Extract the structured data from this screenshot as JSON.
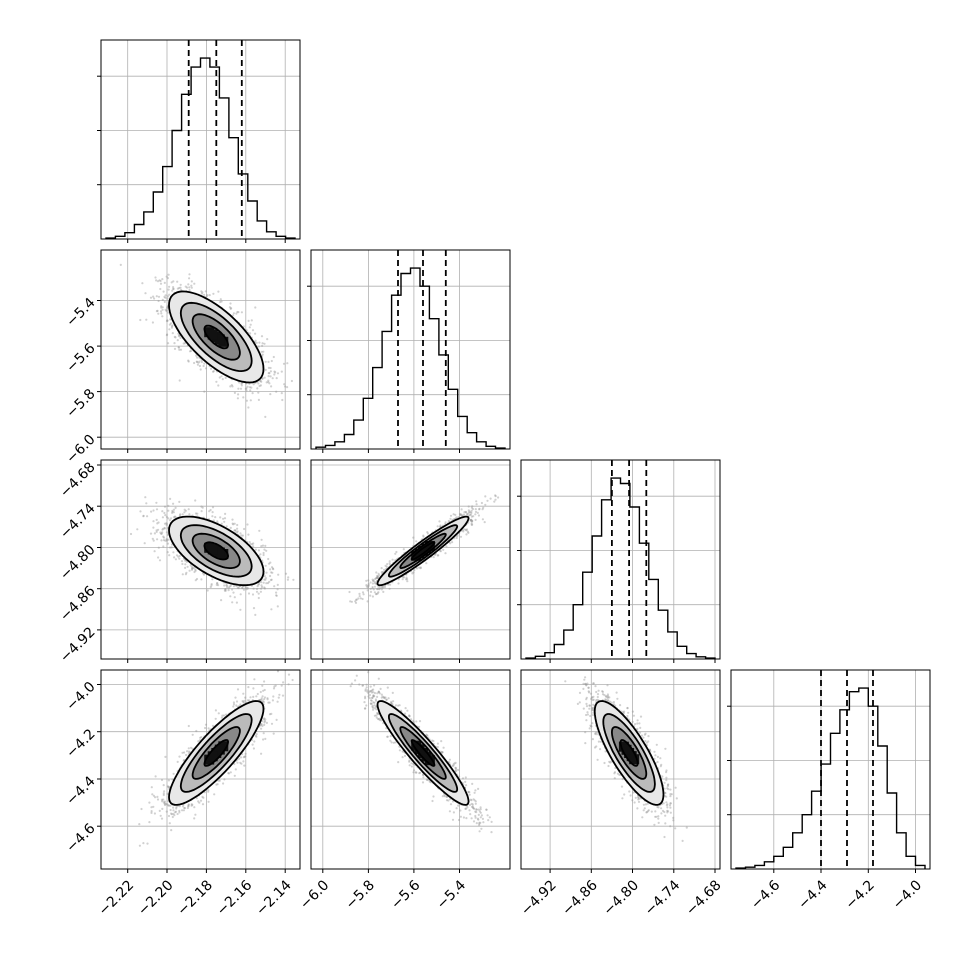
{
  "chart_data": {
    "type": "corner",
    "style": {
      "grid": true,
      "line_color": "#000000",
      "point_color": "#9a9a9a",
      "density_color": "#000000"
    },
    "parameters": [
      {
        "mean": -2.175,
        "sd": 0.012,
        "range": [
          -2.231,
          -2.135
        ],
        "ticks": [
          -2.22,
          -2.2,
          -2.18,
          -2.16,
          -2.14
        ],
        "tick_labels": [
          "−2.22",
          "−2.20",
          "−2.18",
          "−2.16",
          "−2.14"
        ],
        "quantiles": [
          -2.189,
          -2.175,
          -2.162
        ]
      },
      {
        "mean": -5.56,
        "sd": 0.1,
        "range": [
          -6.03,
          -5.2
        ],
        "ticks": [
          -6.0,
          -5.8,
          -5.6,
          -5.4
        ],
        "tick_labels": [
          "−6.0",
          "−5.8",
          "−5.6",
          "−5.4"
        ],
        "quantiles": [
          -5.67,
          -5.56,
          -5.46
        ]
      },
      {
        "mean": -4.805,
        "sd": 0.025,
        "range": [
          -4.955,
          -4.68
        ],
        "ticks": [
          -4.92,
          -4.86,
          -4.8,
          -4.74,
          -4.68
        ],
        "tick_labels": [
          "−4.92",
          "−4.86",
          "−4.80",
          "−4.74",
          "−4.68"
        ],
        "quantiles": [
          -4.83,
          -4.805,
          -4.78
        ]
      },
      {
        "mean": -4.29,
        "sd": 0.11,
        "range": [
          -4.76,
          -3.96
        ],
        "ticks": [
          -4.6,
          -4.4,
          -4.2,
          -4.0
        ],
        "tick_labels": [
          "−4.6",
          "−4.4",
          "−4.2",
          "−4.0"
        ],
        "quantiles": [
          -4.4,
          -4.29,
          -4.18
        ]
      }
    ],
    "correlations": [
      [
        1.0,
        -0.7,
        -0.6,
        0.85
      ],
      [
        -0.7,
        1.0,
        0.95,
        -0.93
      ],
      [
        -0.6,
        0.95,
        1.0,
        -0.8
      ],
      [
        0.85,
        -0.93,
        -0.8,
        1.0
      ]
    ],
    "histogram_bins": 20,
    "histograms": [
      [
        0.005,
        0.015,
        0.035,
        0.08,
        0.15,
        0.26,
        0.4,
        0.6,
        0.8,
        0.95,
        1.0,
        0.95,
        0.78,
        0.56,
        0.36,
        0.21,
        0.1,
        0.04,
        0.015,
        0.005
      ],
      [
        0.01,
        0.02,
        0.04,
        0.08,
        0.16,
        0.28,
        0.45,
        0.65,
        0.85,
        0.97,
        1.0,
        0.9,
        0.72,
        0.52,
        0.33,
        0.18,
        0.09,
        0.04,
        0.015,
        0.005
      ],
      [
        0.005,
        0.015,
        0.035,
        0.08,
        0.16,
        0.3,
        0.48,
        0.68,
        0.88,
        1.0,
        0.97,
        0.84,
        0.64,
        0.44,
        0.27,
        0.15,
        0.07,
        0.03,
        0.012,
        0.005
      ],
      [
        0.005,
        0.01,
        0.02,
        0.04,
        0.07,
        0.12,
        0.2,
        0.3,
        0.43,
        0.58,
        0.75,
        0.88,
        0.98,
        1.0,
        0.9,
        0.68,
        0.42,
        0.2,
        0.07,
        0.02
      ]
    ],
    "contour_levels_sigma": [
      0.5,
      1.0,
      1.5,
      2.0
    ],
    "samples_per_panel": 2200
  }
}
